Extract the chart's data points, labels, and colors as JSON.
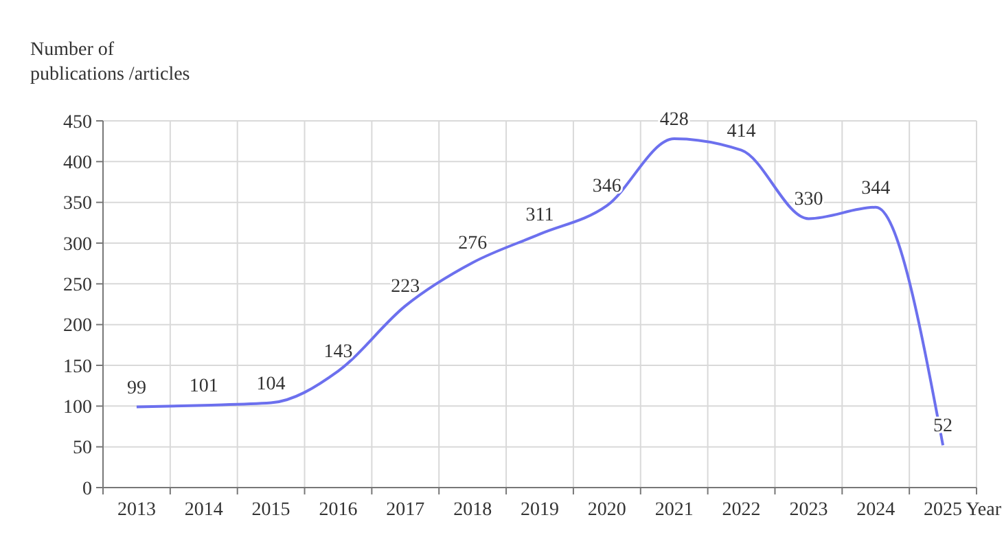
{
  "chart_data": {
    "type": "line",
    "ylabel": "Number of\npublications /articles",
    "xlabel": "Year",
    "categories": [
      "2013",
      "2014",
      "2015",
      "2016",
      "2017",
      "2018",
      "2019",
      "2020",
      "2021",
      "2022",
      "2023",
      "2024",
      "2025"
    ],
    "series": [
      {
        "color": "#6c70ee",
        "values": [
          99,
          101,
          104,
          143,
          223,
          276,
          311,
          346,
          428,
          414,
          330,
          344,
          52
        ]
      }
    ],
    "ylim": [
      0,
      450
    ],
    "yticks": [
      0,
      50,
      100,
      150,
      200,
      250,
      300,
      350,
      400,
      450
    ],
    "grid": true,
    "data_labels": true,
    "marker": "none",
    "line_style": "solid"
  }
}
